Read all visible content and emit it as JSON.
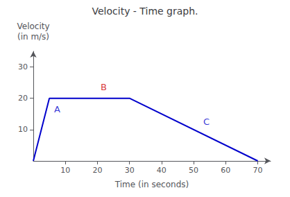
{
  "chart_data": {
    "type": "line",
    "title": "Velocity - Time graph.",
    "x_label": "Time (in seconds)",
    "y_label": "Velocity\n(in m/s)",
    "x": [
      0,
      5,
      30,
      70
    ],
    "values": [
      0,
      20,
      20,
      0
    ],
    "color": "#0000cc",
    "xlim": [
      0,
      74
    ],
    "ylim": [
      0,
      35
    ],
    "xticks": [
      10,
      20,
      30,
      40,
      50,
      60,
      70
    ],
    "yticks": [
      10,
      20,
      30
    ],
    "grid": false,
    "annotations": [
      {
        "text": "A",
        "x": 6.5,
        "y": 16.5,
        "color": "#0000cc"
      },
      {
        "text": "B",
        "x": 21,
        "y": 23.5,
        "color": "#cc0000"
      },
      {
        "text": "C",
        "x": 53,
        "y": 12.5,
        "color": "#0000cc"
      }
    ]
  }
}
